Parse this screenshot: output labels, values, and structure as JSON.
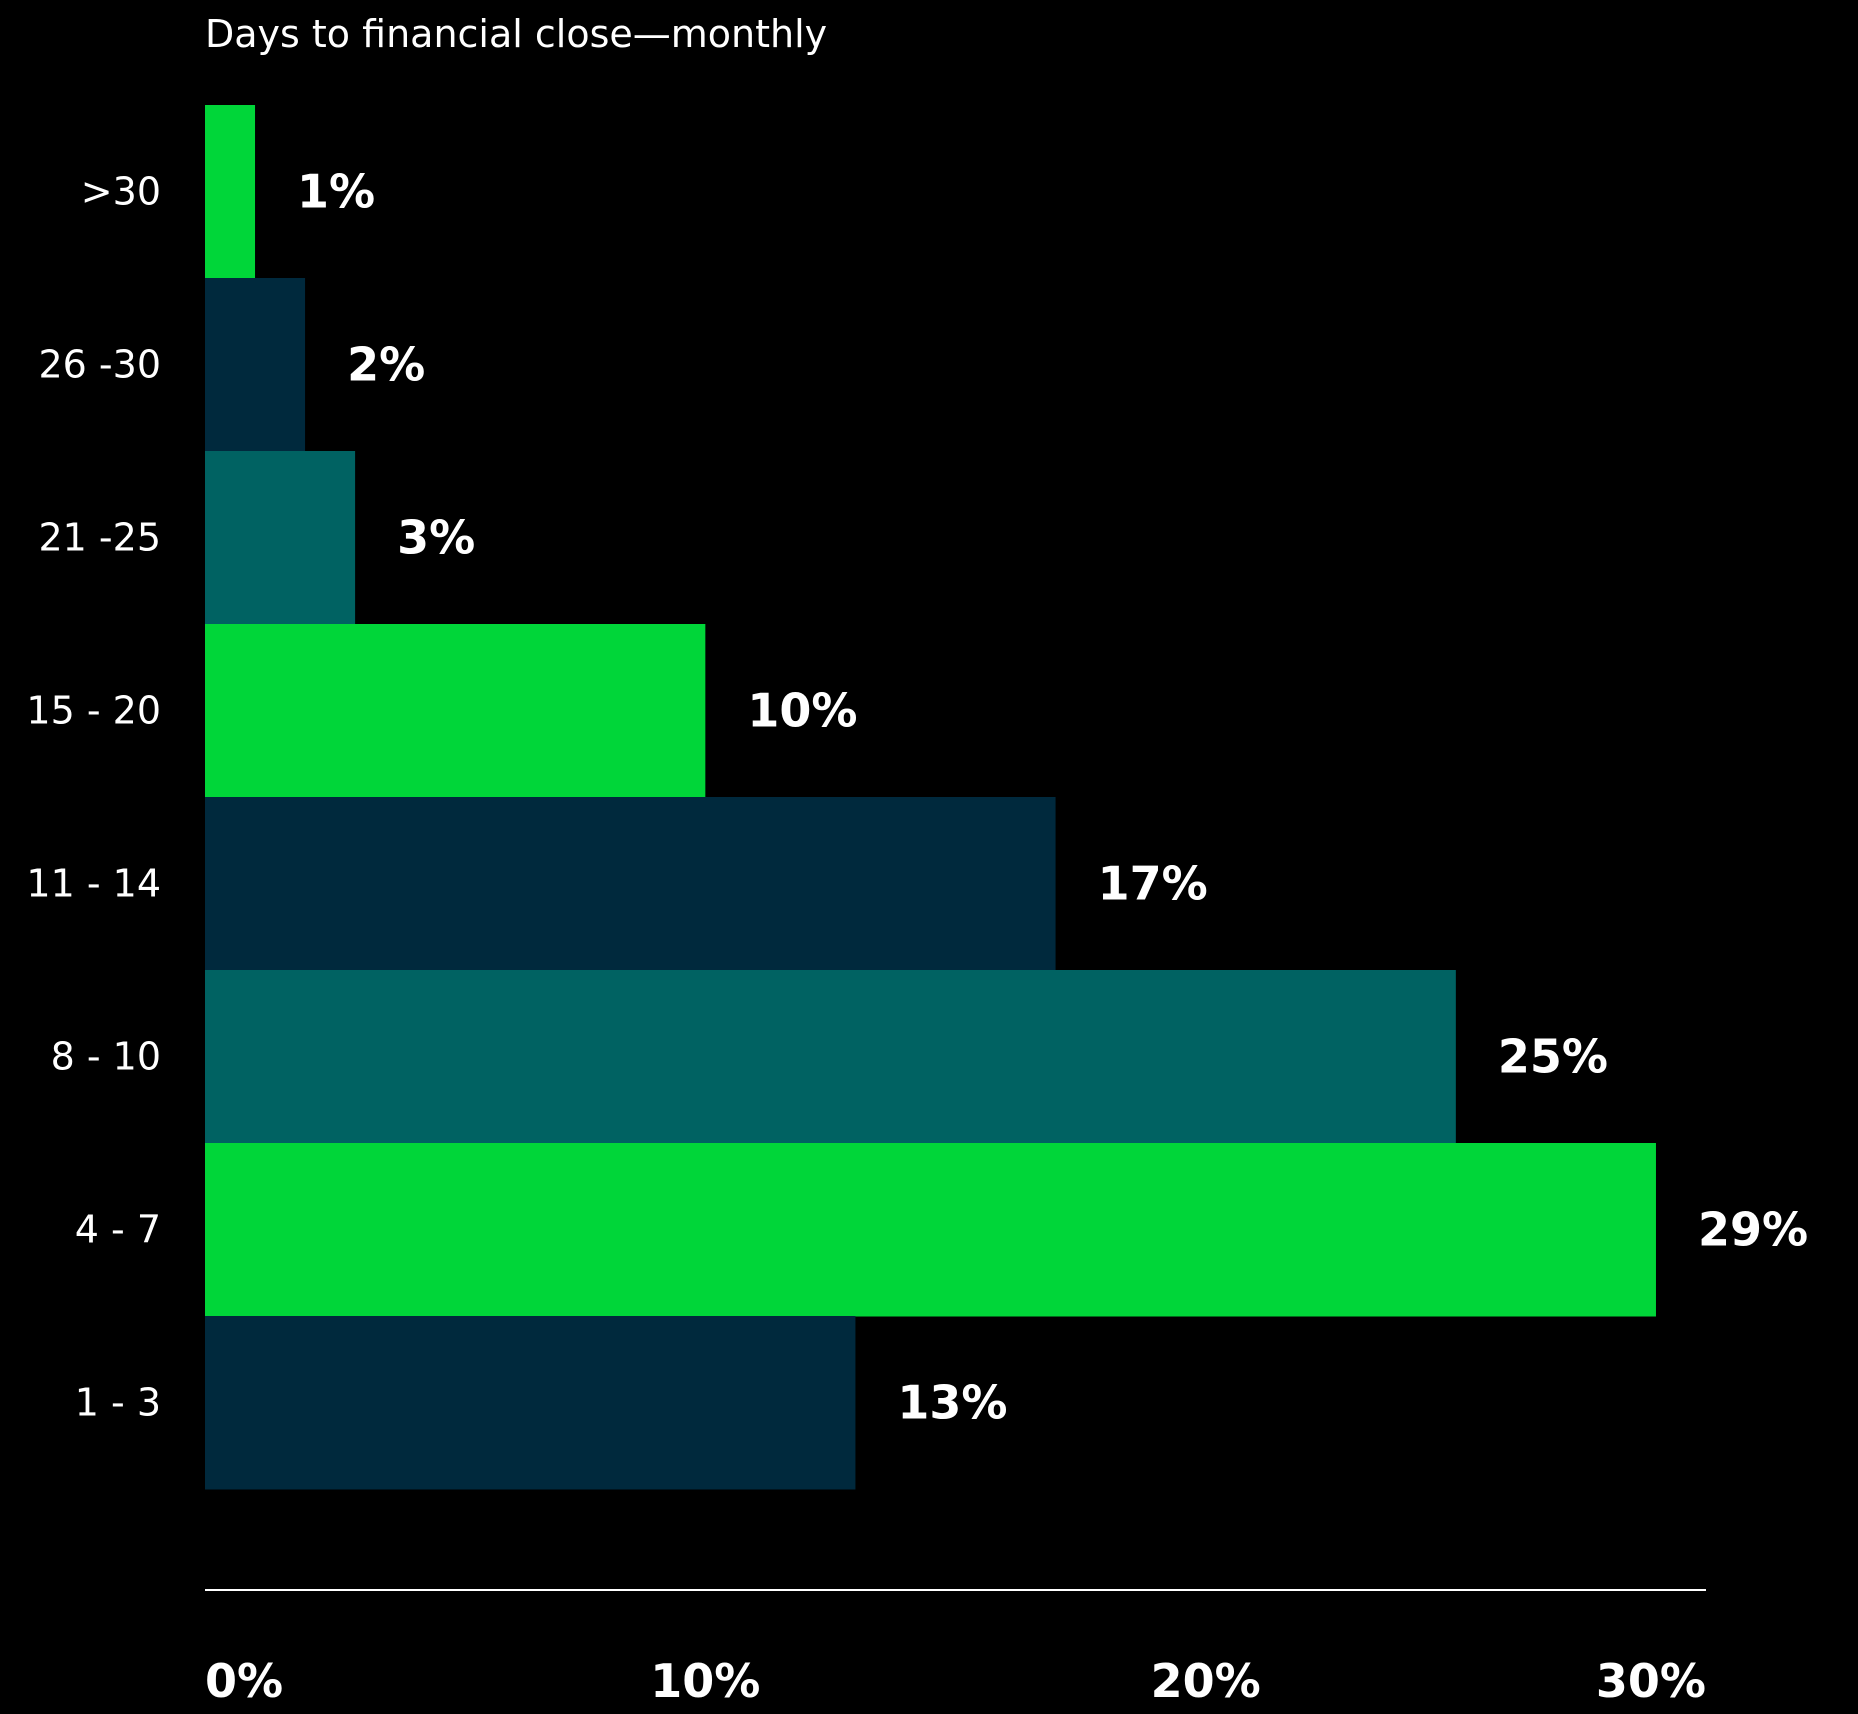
{
  "chart_data": {
    "type": "bar",
    "orientation": "horizontal",
    "title": "Days to financial close—monthly",
    "categories": [
      ">30",
      "26 -30",
      "21 -25",
      "15 - 20",
      "11 - 14",
      "8 - 10",
      "4 - 7",
      "1 - 3"
    ],
    "values": [
      1,
      2,
      3,
      10,
      17,
      25,
      29,
      13
    ],
    "value_labels": [
      "1%",
      "2%",
      "3%",
      "10%",
      "17%",
      "25%",
      "29%",
      "13%"
    ],
    "bar_colors": [
      "#00d639",
      "#00293d",
      "#006262",
      "#00d639",
      "#00293d",
      "#006262",
      "#00d639",
      "#00293d"
    ],
    "xlim": [
      0,
      30
    ],
    "x_ticks": [
      0,
      10,
      20,
      30
    ],
    "x_tick_labels": [
      "0%",
      "10%",
      "20%",
      "30%"
    ],
    "grid": false,
    "legend": "none",
    "colors": {
      "background": "#000000",
      "text": "#ffffff",
      "axis_line": "#ffffff"
    }
  }
}
